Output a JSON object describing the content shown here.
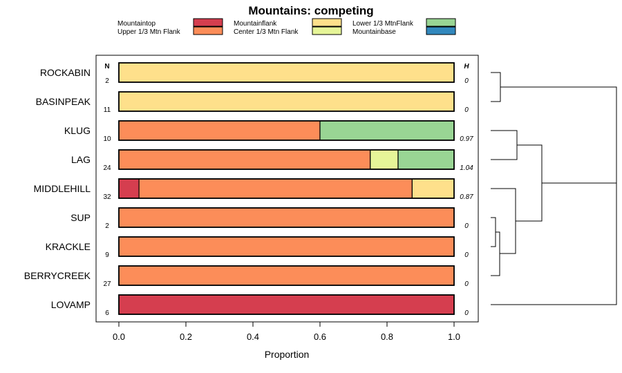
{
  "chart_data": {
    "type": "bar",
    "orientation": "horizontal",
    "stacked": true,
    "title": "Mountains: competing",
    "xlabel": "Proportion",
    "ylabel": "",
    "xlim": [
      0,
      1
    ],
    "xticks": [
      "0.0",
      "0.2",
      "0.4",
      "0.6",
      "0.8",
      "1.0"
    ],
    "xtick_values": [
      0,
      0.2,
      0.4,
      0.6,
      0.8,
      1.0
    ],
    "n_header": "N",
    "h_header": "H",
    "legend": [
      {
        "name": "Mountaintop",
        "color": "#d53e4f"
      },
      {
        "name": "Upper 1/3 Mtn Flank",
        "color": "#fc8d59"
      },
      {
        "name": "Mountainflank",
        "color": "#fee08b"
      },
      {
        "name": "Center 1/3 Mtn Flank",
        "color": "#e6f598"
      },
      {
        "name": "Lower 1/3 MtnFlank",
        "color": "#99d594"
      },
      {
        "name": "Mountainbase",
        "color": "#3288bd"
      }
    ],
    "categories": [
      "ROCKABIN",
      "BASINPEAK",
      "KLUG",
      "LAG",
      "MIDDLEHILL",
      "SUP",
      "KRACKLE",
      "BERRYCREEK",
      "LOVAMP"
    ],
    "n": [
      "2",
      "11",
      "10",
      "24",
      "32",
      "2",
      "9",
      "27",
      "6"
    ],
    "h": [
      "0",
      "0",
      "0.97",
      "1.04",
      "0.87",
      "0",
      "0",
      "0",
      "0"
    ],
    "series": [
      {
        "name": "Mountaintop",
        "values": [
          0,
          0,
          0,
          0,
          0.06,
          0,
          0,
          0,
          1.0
        ]
      },
      {
        "name": "Upper 1/3 Mtn Flank",
        "values": [
          0,
          0,
          0.6,
          0.75,
          0.815,
          1.0,
          1.0,
          1.0,
          0
        ]
      },
      {
        "name": "Mountainflank",
        "values": [
          1.0,
          1.0,
          0,
          0,
          0.125,
          0,
          0,
          0,
          0
        ]
      },
      {
        "name": "Center 1/3 Mtn Flank",
        "values": [
          0,
          0,
          0,
          0.083,
          0,
          0,
          0,
          0,
          0
        ]
      },
      {
        "name": "Lower 1/3 MtnFlank",
        "values": [
          0,
          0,
          0.4,
          0.167,
          0,
          0,
          0,
          0,
          0
        ]
      },
      {
        "name": "Mountainbase",
        "values": [
          0,
          0,
          0,
          0,
          0,
          0,
          0,
          0,
          0
        ]
      }
    ],
    "dendrogram": "hierarchical clustering tree of the nine mountains"
  }
}
